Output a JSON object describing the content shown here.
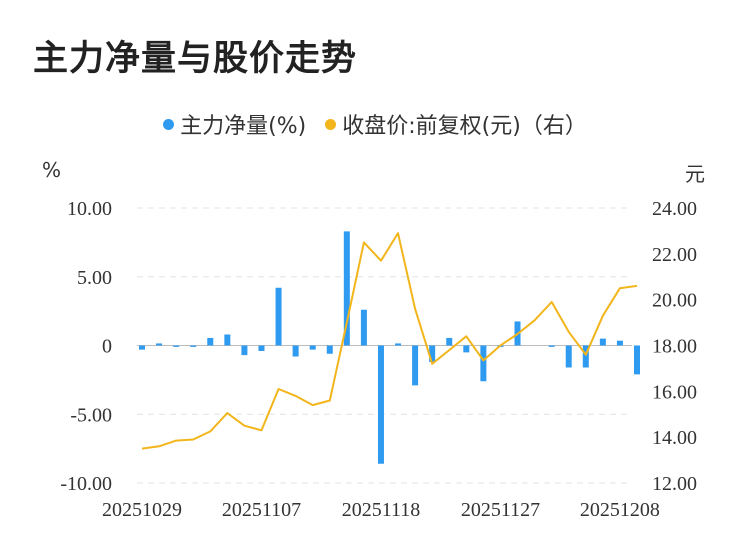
{
  "title": "主力净量与股价走势",
  "colors": {
    "bar": "#2e9af0",
    "line": "#f2b51b",
    "grid": "#e3e3e3",
    "zero": "#bdbdbd"
  },
  "chart_data": {
    "type": "bar+line",
    "left_unit": "%",
    "right_unit": "元",
    "legend": [
      {
        "name": "主力净量(%)",
        "color": "#2e9af0"
      },
      {
        "name": "收盘价:前复权(元)（右）",
        "color": "#f2b51b"
      }
    ],
    "y_left": {
      "min": -10,
      "max": 10,
      "ticks": [
        "10.00",
        "5.00",
        "0",
        "-5.00",
        "-10.00"
      ]
    },
    "y_right": {
      "min": 12,
      "max": 24,
      "ticks": [
        "24.00",
        "22.00",
        "20.00",
        "18.00",
        "16.00",
        "14.00",
        "12.00"
      ]
    },
    "x_tick_labels": [
      "20251029",
      "20251107",
      "20251118",
      "20251127",
      "20251208"
    ],
    "x_tick_indices": [
      0,
      7,
      14,
      21,
      28
    ],
    "net_flow": [
      -0.3,
      0.15,
      -0.1,
      -0.1,
      0.55,
      0.8,
      -0.7,
      -0.4,
      4.2,
      -0.8,
      -0.3,
      -0.6,
      8.3,
      2.6,
      -8.6,
      0.15,
      -2.9,
      -1.2,
      0.55,
      -0.5,
      -2.6,
      -0.1,
      1.75,
      0.0,
      -0.1,
      -1.6,
      -1.6,
      0.5,
      0.35,
      -2.1
    ],
    "close_price": [
      13.5,
      13.6,
      13.85,
      13.9,
      14.25,
      15.05,
      14.5,
      14.3,
      16.1,
      15.8,
      15.4,
      15.6,
      19.0,
      22.5,
      21.7,
      22.9,
      19.6,
      17.2,
      17.8,
      18.4,
      17.35,
      18.0,
      18.5,
      19.1,
      19.9,
      18.6,
      17.6,
      19.3,
      20.5,
      20.6
    ]
  }
}
